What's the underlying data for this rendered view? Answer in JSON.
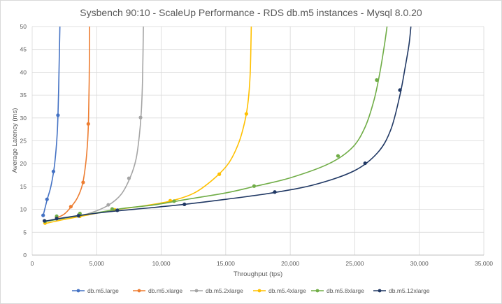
{
  "chart_data": {
    "type": "scatter",
    "title": "Sysbench 90:10 - ScaleUp Performance - RDS db.m5 instances - Mysql 8.0.20",
    "xlabel": "Throughput (tps)",
    "ylabel": "Average Latency (ms)",
    "xlim": [
      0,
      35000
    ],
    "ylim": [
      0,
      50
    ],
    "x_ticks": [
      0,
      5000,
      10000,
      15000,
      20000,
      25000,
      30000,
      35000
    ],
    "x_tick_labels": [
      "0",
      "5,000",
      "10,000",
      "15,000",
      "20,000",
      "25,000",
      "30,000",
      "35,000"
    ],
    "y_ticks": [
      0,
      5,
      10,
      15,
      20,
      25,
      30,
      35,
      40,
      45,
      50
    ],
    "y_tick_labels": [
      "0",
      "5",
      "10",
      "15",
      "20",
      "25",
      "30",
      "35",
      "40",
      "45",
      "50"
    ],
    "grid": true,
    "legend_position": "bottom",
    "series": [
      {
        "name": "db.m5.large",
        "color": "#4472c4",
        "points": [
          [
            850,
            8.7
          ],
          [
            1150,
            12.2
          ],
          [
            1650,
            18.3
          ],
          [
            2000,
            30.6
          ]
        ],
        "curve": [
          [
            850,
            8.6
          ],
          [
            1150,
            12.0
          ],
          [
            1450,
            15.0
          ],
          [
            1700,
            19.0
          ],
          [
            1850,
            23.0
          ],
          [
            1950,
            27.0
          ],
          [
            2000,
            30.6
          ],
          [
            2050,
            36.0
          ],
          [
            2100,
            43.0
          ],
          [
            2150,
            50.0
          ]
        ]
      },
      {
        "name": "db.m5.xlarge",
        "color": "#ed7d31",
        "points": [
          [
            1900,
            8.2
          ],
          [
            3000,
            10.6
          ],
          [
            3950,
            15.9
          ],
          [
            4350,
            28.7
          ]
        ],
        "curve": [
          [
            1900,
            8.1
          ],
          [
            2500,
            9.0
          ],
          [
            3000,
            10.5
          ],
          [
            3500,
            12.5
          ],
          [
            3900,
            15.5
          ],
          [
            4150,
            20.0
          ],
          [
            4300,
            25.0
          ],
          [
            4370,
            30.0
          ],
          [
            4420,
            38.0
          ],
          [
            4450,
            50.0
          ]
        ]
      },
      {
        "name": "db.m5.2xlarge",
        "color": "#a5a5a5",
        "points": [
          [
            1900,
            7.9
          ],
          [
            3600,
            8.8
          ],
          [
            5900,
            11.0
          ],
          [
            7500,
            16.8
          ],
          [
            8400,
            30.1
          ]
        ],
        "curve": [
          [
            1900,
            7.9
          ],
          [
            3000,
            8.3
          ],
          [
            4500,
            9.2
          ],
          [
            5900,
            10.9
          ],
          [
            6900,
            13.3
          ],
          [
            7600,
            17.0
          ],
          [
            8050,
            21.0
          ],
          [
            8300,
            26.0
          ],
          [
            8450,
            31.0
          ],
          [
            8550,
            38.0
          ],
          [
            8620,
            50.0
          ]
        ]
      },
      {
        "name": "db.m5.4xlarge",
        "color": "#ffc000",
        "points": [
          [
            1000,
            7.0
          ],
          [
            3700,
            8.5
          ],
          [
            6400,
            9.9
          ],
          [
            10700,
            11.9
          ],
          [
            14500,
            17.7
          ],
          [
            16600,
            30.9
          ]
        ],
        "curve": [
          [
            1000,
            6.9
          ],
          [
            2500,
            7.8
          ],
          [
            4000,
            8.6
          ],
          [
            6400,
            9.9
          ],
          [
            8500,
            10.7
          ],
          [
            10700,
            11.8
          ],
          [
            12500,
            13.5
          ],
          [
            14000,
            16.5
          ],
          [
            15200,
            20.0
          ],
          [
            16000,
            24.5
          ],
          [
            16500,
            29.5
          ],
          [
            16750,
            34.0
          ],
          [
            16900,
            40.0
          ],
          [
            16980,
            50.0
          ]
        ]
      },
      {
        "name": "db.m5.8xlarge",
        "color": "#70ad47",
        "points": [
          [
            1000,
            7.4
          ],
          [
            1900,
            8.5
          ],
          [
            3700,
            9.1
          ],
          [
            6200,
            10.1
          ],
          [
            11000,
            11.8
          ],
          [
            17200,
            15.1
          ],
          [
            23700,
            21.7
          ],
          [
            26700,
            38.3
          ]
        ],
        "curve": [
          [
            1000,
            7.3
          ],
          [
            2500,
            8.1
          ],
          [
            4500,
            9.0
          ],
          [
            7000,
            10.2
          ],
          [
            9500,
            11.0
          ],
          [
            12000,
            12.2
          ],
          [
            15000,
            13.6
          ],
          [
            17200,
            15.0
          ],
          [
            20000,
            16.9
          ],
          [
            23000,
            20.0
          ],
          [
            24800,
            23.5
          ],
          [
            25800,
            28.0
          ],
          [
            26500,
            34.0
          ],
          [
            26950,
            40.0
          ],
          [
            27300,
            46.0
          ],
          [
            27500,
            50.0
          ]
        ]
      },
      {
        "name": "db.m5.12xlarge",
        "color": "#203864",
        "points": [
          [
            950,
            7.5
          ],
          [
            1900,
            8.0
          ],
          [
            3600,
            8.6
          ],
          [
            6600,
            9.8
          ],
          [
            11800,
            11.1
          ],
          [
            18800,
            13.8
          ],
          [
            25800,
            20.1
          ],
          [
            28500,
            36.1
          ]
        ],
        "curve": [
          [
            950,
            7.4
          ],
          [
            3000,
            8.4
          ],
          [
            6000,
            9.5
          ],
          [
            9000,
            10.3
          ],
          [
            11800,
            11.1
          ],
          [
            15000,
            12.2
          ],
          [
            18800,
            13.7
          ],
          [
            22000,
            15.5
          ],
          [
            25000,
            18.5
          ],
          [
            26800,
            22.5
          ],
          [
            27800,
            27.5
          ],
          [
            28500,
            35.0
          ],
          [
            28900,
            41.0
          ],
          [
            29200,
            46.0
          ],
          [
            29350,
            50.0
          ]
        ]
      }
    ]
  }
}
